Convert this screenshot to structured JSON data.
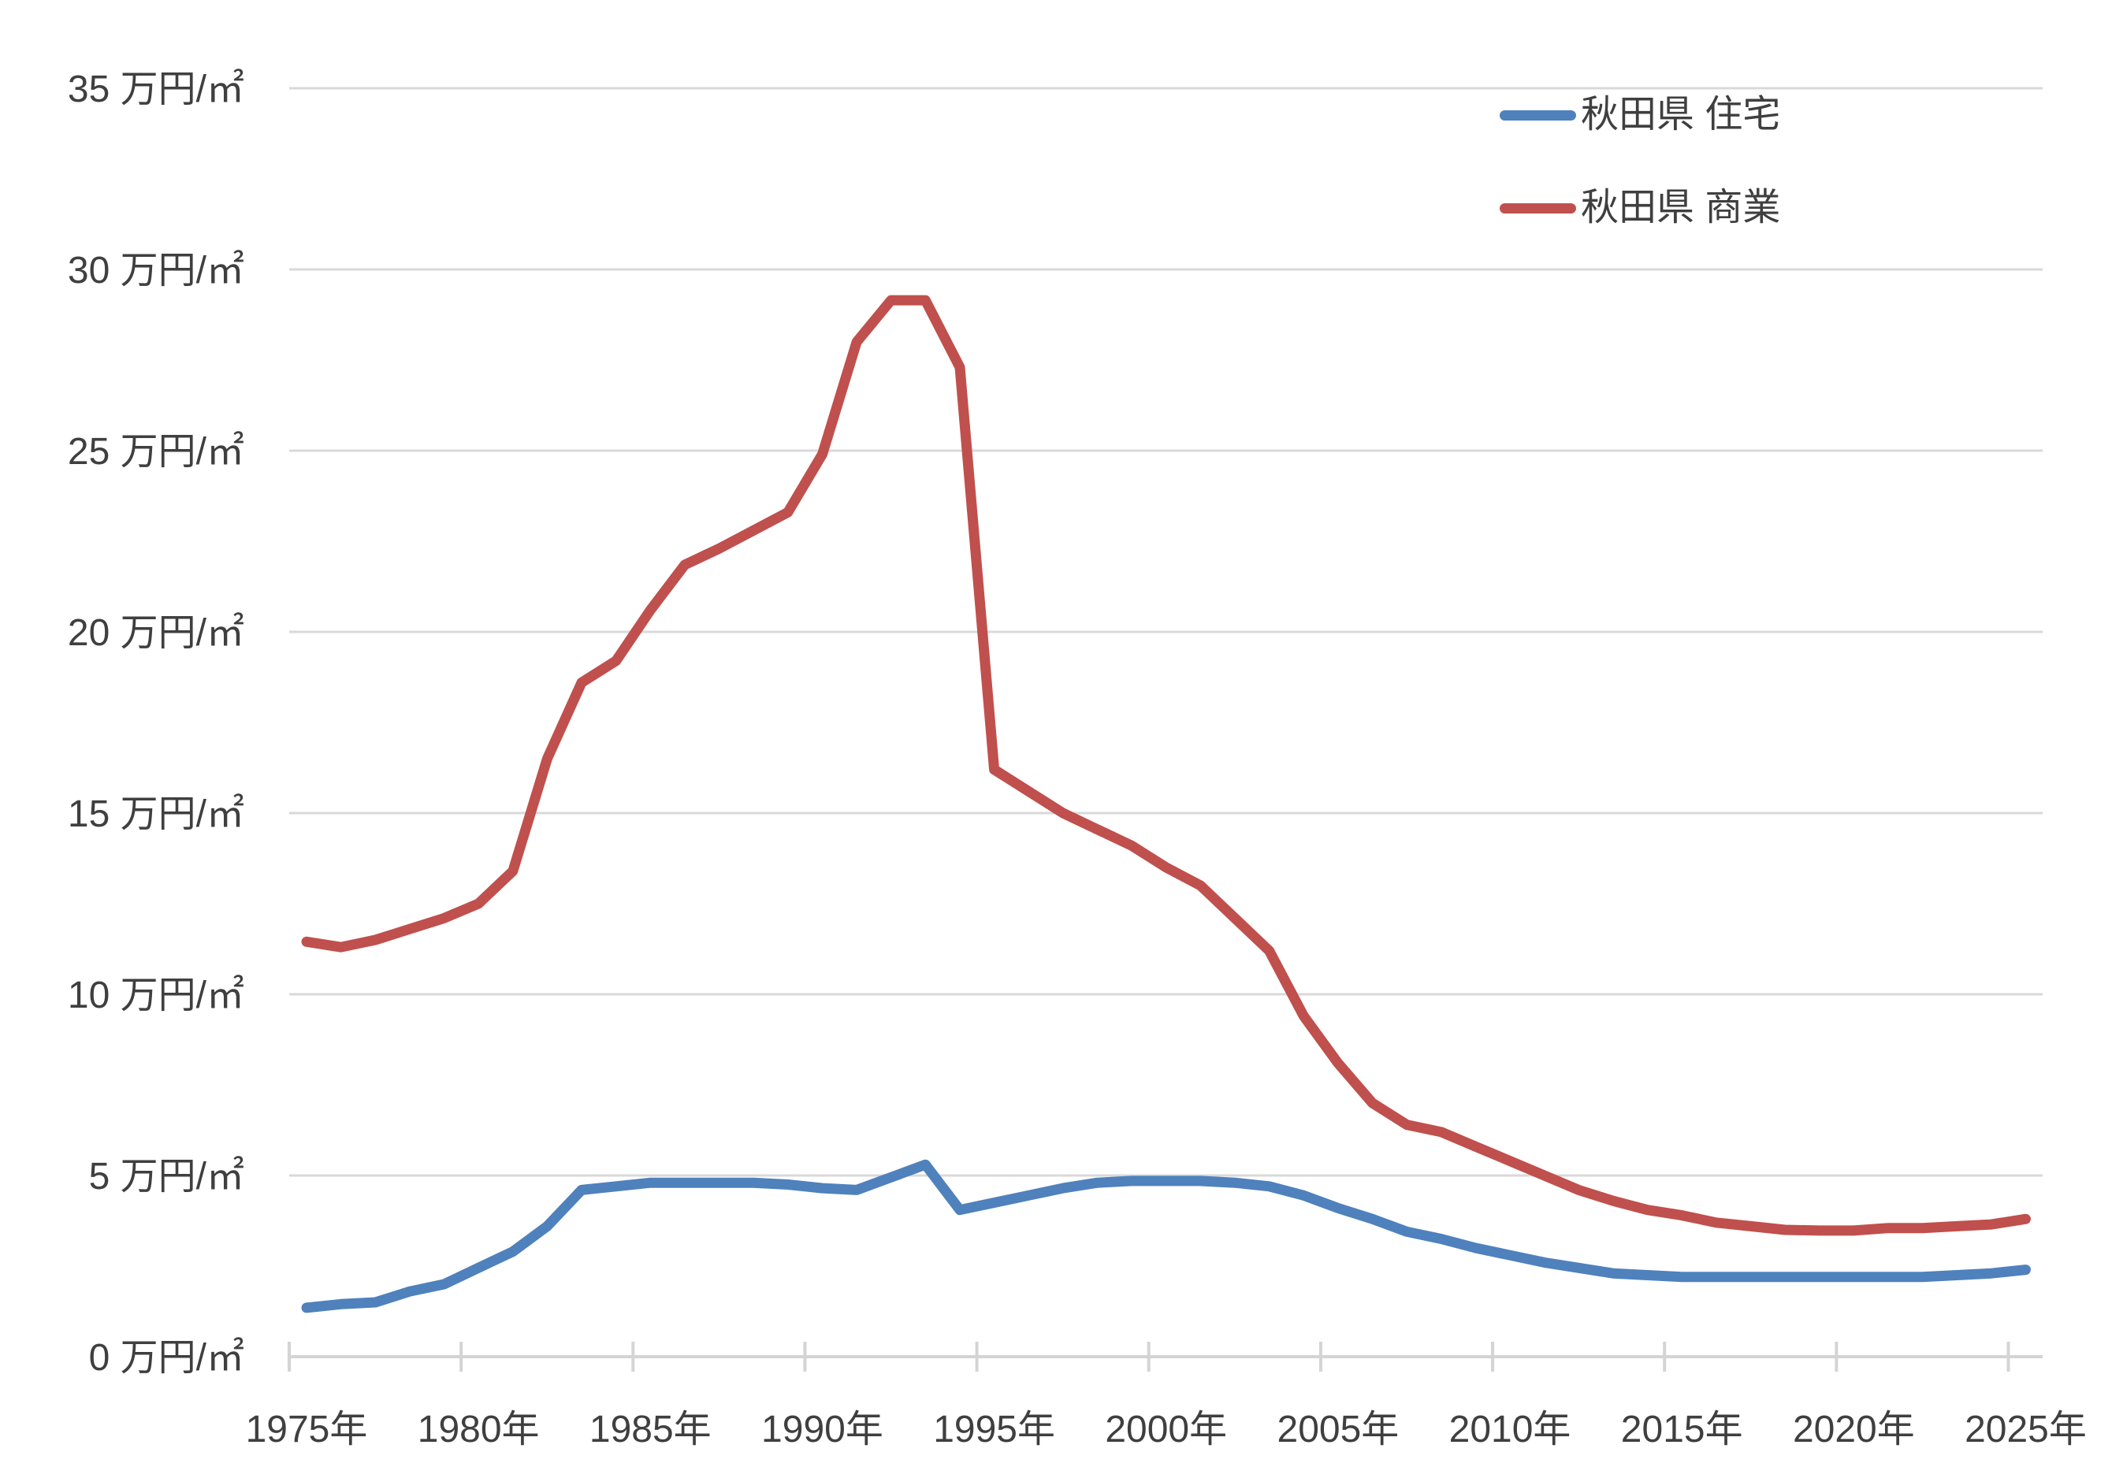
{
  "chart_data": {
    "type": "line",
    "title": "",
    "xlabel": "",
    "ylabel": "万円/㎡",
    "x": [
      1975,
      1976,
      1977,
      1978,
      1979,
      1980,
      1981,
      1982,
      1983,
      1984,
      1985,
      1986,
      1987,
      1988,
      1989,
      1990,
      1991,
      1992,
      1993,
      1994,
      1995,
      1996,
      1997,
      1998,
      1999,
      2000,
      2001,
      2002,
      2003,
      2004,
      2005,
      2006,
      2007,
      2008,
      2009,
      2010,
      2011,
      2012,
      2013,
      2014,
      2015,
      2016,
      2017,
      2018,
      2019,
      2020,
      2021,
      2022,
      2023,
      2024,
      2025
    ],
    "series": [
      {
        "name": "秋田県 住宅",
        "color": "#4F81BD",
        "values": [
          1.35,
          1.45,
          1.5,
          1.8,
          2.0,
          2.45,
          2.9,
          3.6,
          4.6,
          4.7,
          4.8,
          4.8,
          4.8,
          4.8,
          4.75,
          4.65,
          4.6,
          4.95,
          5.3,
          4.05,
          4.25,
          4.45,
          4.65,
          4.8,
          4.85,
          4.85,
          4.85,
          4.8,
          4.7,
          4.45,
          4.1,
          3.8,
          3.45,
          3.25,
          3.0,
          2.8,
          2.6,
          2.45,
          2.3,
          2.25,
          2.2,
          2.2,
          2.2,
          2.2,
          2.2,
          2.2,
          2.2,
          2.2,
          2.25,
          2.3,
          2.4
        ]
      },
      {
        "name": "秋田県 商業",
        "color": "#C0504D",
        "values": [
          11.45,
          11.3,
          11.5,
          11.8,
          12.1,
          12.5,
          13.4,
          16.5,
          18.6,
          19.2,
          20.6,
          21.85,
          22.3,
          22.8,
          23.3,
          24.9,
          28.0,
          29.15,
          29.15,
          27.3,
          16.2,
          15.6,
          15.0,
          14.55,
          14.1,
          13.5,
          13.0,
          12.1,
          11.2,
          9.4,
          8.1,
          7.0,
          6.4,
          6.2,
          5.8,
          5.4,
          5.0,
          4.6,
          4.3,
          4.05,
          3.9,
          3.7,
          3.6,
          3.5,
          3.48,
          3.48,
          3.55,
          3.55,
          3.6,
          3.65,
          3.8
        ]
      }
    ],
    "ylim": [
      0,
      35
    ],
    "ystep": 5,
    "grid": "horizontal",
    "legend_position": "top-right"
  },
  "axes": {
    "y": {
      "labels": [
        "0 万円/㎡",
        "5 万円/㎡",
        "10 万円/㎡",
        "15 万円/㎡",
        "20 万円/㎡",
        "25 万円/㎡",
        "30 万円/㎡",
        "35 万円/㎡"
      ]
    },
    "x": {
      "labels": [
        "1975年",
        "1980年",
        "1985年",
        "1990年",
        "1995年",
        "2000年",
        "2005年",
        "2010年",
        "2015年",
        "2020年",
        "2025年"
      ],
      "label_years": [
        1975,
        1980,
        1985,
        1990,
        1995,
        2000,
        2005,
        2010,
        2015,
        2020,
        2025
      ]
    }
  },
  "legend": {
    "items": [
      {
        "label": "秋田県 住宅",
        "color": "#4F81BD"
      },
      {
        "label": "秋田県 商業",
        "color": "#C0504D"
      }
    ]
  },
  "style_colors": {
    "gridline": "#D9D9D9",
    "axis": "#D4D4D4",
    "text": "#3F3F3F",
    "background": "#FFFFFF"
  }
}
